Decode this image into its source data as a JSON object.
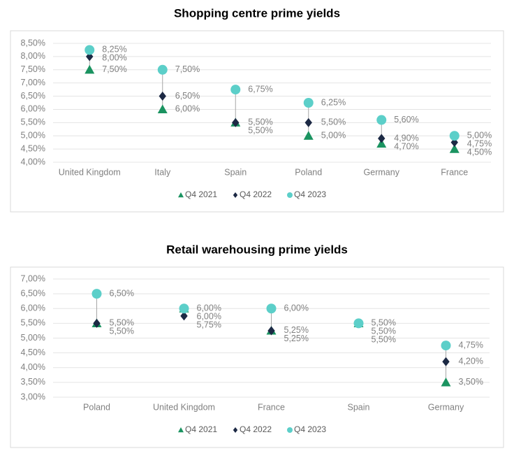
{
  "chart_data": [
    {
      "type": "dot",
      "title": "Shopping centre prime yields",
      "categories": [
        "United Kingdom",
        "Italy",
        "Spain",
        "Poland",
        "Germany",
        "France"
      ],
      "series": [
        {
          "name": "Q4 2021",
          "color": "#1a9360",
          "marker": "triangle",
          "values": [
            7.5,
            6.0,
            5.5,
            5.0,
            4.7,
            4.5
          ],
          "value_labels": [
            "7,50%",
            "6,00%",
            "5,50%",
            "5,00%",
            "4,70%",
            "4,50%"
          ]
        },
        {
          "name": "Q4 2022",
          "color": "#1c2944",
          "marker": "diamond",
          "values": [
            8.0,
            6.5,
            5.5,
            5.5,
            4.9,
            4.75
          ],
          "value_labels": [
            "8,00%",
            "6,50%",
            "5,50%",
            "5,50%",
            "4,90%",
            "4,75%"
          ]
        },
        {
          "name": "Q4 2023",
          "color": "#5ccfc9",
          "marker": "circle",
          "values": [
            8.25,
            7.5,
            6.75,
            6.25,
            5.6,
            5.0
          ],
          "value_labels": [
            "8,25%",
            "7,50%",
            "6,75%",
            "6,25%",
            "5,60%",
            "5,00%"
          ]
        }
      ],
      "ylim": [
        4.0,
        8.5
      ],
      "yticks": [
        {
          "value": 4.0,
          "label": "4,00%"
        },
        {
          "value": 4.5,
          "label": "4,50%"
        },
        {
          "value": 5.0,
          "label": "5,00%"
        },
        {
          "value": 5.5,
          "label": "5,50%"
        },
        {
          "value": 6.0,
          "label": "6,00%"
        },
        {
          "value": 6.5,
          "label": "6,50%"
        },
        {
          "value": 7.0,
          "label": "7,00%"
        },
        {
          "value": 7.5,
          "label": "7,50%"
        },
        {
          "value": 8.0,
          "label": "8,00%"
        },
        {
          "value": 8.5,
          "label": "8,50%"
        }
      ],
      "grid": true,
      "legend": "bottom"
    },
    {
      "type": "dot",
      "title": "Retail warehousing prime yields",
      "categories": [
        "Poland",
        "United Kingdom",
        "France",
        "Spain",
        "Germany"
      ],
      "series": [
        {
          "name": "Q4 2021",
          "color": "#1a9360",
          "marker": "triangle",
          "values": [
            5.5,
            6.0,
            5.25,
            5.5,
            3.5
          ],
          "value_labels": [
            "5,50%",
            "6,00%",
            "5,25%",
            "5,50%",
            "3,50%"
          ]
        },
        {
          "name": "Q4 2022",
          "color": "#1c2944",
          "marker": "diamond",
          "values": [
            5.5,
            5.75,
            5.25,
            5.5,
            4.2
          ],
          "value_labels": [
            "5,50%",
            "5,75%",
            "5,25%",
            "5,50%",
            "4,20%"
          ]
        },
        {
          "name": "Q4 2023",
          "color": "#5ccfc9",
          "marker": "circle",
          "values": [
            6.5,
            6.0,
            6.0,
            5.5,
            4.75
          ],
          "value_labels": [
            "6,50%",
            "6,00%",
            "6,00%",
            "5,50%",
            "4,75%"
          ]
        }
      ],
      "ylim": [
        3.0,
        7.0
      ],
      "yticks": [
        {
          "value": 3.0,
          "label": "3,00%"
        },
        {
          "value": 3.5,
          "label": "3,50%"
        },
        {
          "value": 4.0,
          "label": "4,00%"
        },
        {
          "value": 4.5,
          "label": "4,50%"
        },
        {
          "value": 5.0,
          "label": "5,00%"
        },
        {
          "value": 5.5,
          "label": "5,50%"
        },
        {
          "value": 6.0,
          "label": "6,00%"
        },
        {
          "value": 6.5,
          "label": "6,50%"
        },
        {
          "value": 7.0,
          "label": "7,00%"
        }
      ],
      "grid": true,
      "legend": "bottom"
    }
  ]
}
